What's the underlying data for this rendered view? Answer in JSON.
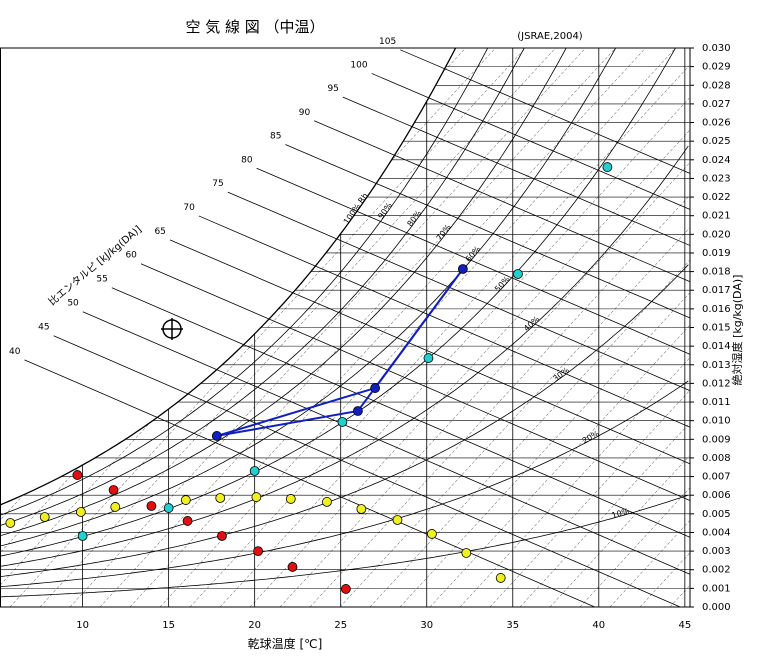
{
  "chart_data": {
    "type": "scatter",
    "title": "空 気 線 図 （中温）",
    "subtitle": "(JSRAE,2004)",
    "x_label": "乾球温度 [℃]",
    "y_label": "絶対湿度 [kg/kg(DA)]",
    "enthalpy_label": "比エンタルピ [kJ/kg(DA)]",
    "yaxis_position": "right",
    "xlim": [
      5.2,
      45.3
    ],
    "xticks": [
      10,
      15,
      20,
      25,
      30,
      35,
      40,
      45
    ],
    "ylim": [
      0,
      0.03
    ],
    "yticks": [
      {
        "value": 0,
        "label": "0.000"
      },
      {
        "value": 0.001,
        "label": "0.001"
      },
      {
        "value": 0.002,
        "label": "0.002"
      },
      {
        "value": 0.003,
        "label": "0.003"
      },
      {
        "value": 0.004,
        "label": "0.004"
      },
      {
        "value": 0.005,
        "label": "0.005"
      },
      {
        "value": 0.006,
        "label": "0.006"
      },
      {
        "value": 0.007,
        "label": "0.007"
      },
      {
        "value": 0.008,
        "label": "0.008"
      },
      {
        "value": 0.009,
        "label": "0.009"
      },
      {
        "value": 0.01,
        "label": "0.010"
      },
      {
        "value": 0.011,
        "label": "0.011"
      },
      {
        "value": 0.012,
        "label": "0.012"
      },
      {
        "value": 0.013,
        "label": "0.013"
      },
      {
        "value": 0.014,
        "label": "0.014"
      },
      {
        "value": 0.015,
        "label": "0.015"
      },
      {
        "value": 0.016,
        "label": "0.016"
      },
      {
        "value": 0.017,
        "label": "0.017"
      },
      {
        "value": 0.018,
        "label": "0.018"
      },
      {
        "value": 0.019,
        "label": "0.019"
      },
      {
        "value": 0.02,
        "label": "0.020"
      },
      {
        "value": 0.021,
        "label": "0.021"
      },
      {
        "value": 0.022,
        "label": "0.022"
      },
      {
        "value": 0.023,
        "label": "0.023"
      },
      {
        "value": 0.024,
        "label": "0.024"
      },
      {
        "value": 0.025,
        "label": "0.025"
      },
      {
        "value": 0.026,
        "label": "0.026"
      },
      {
        "value": 0.027,
        "label": "0.027"
      },
      {
        "value": 0.028,
        "label": "0.028"
      },
      {
        "value": 0.029,
        "label": "0.029"
      },
      {
        "value": 0.03,
        "label": "0.030"
      }
    ],
    "enthalpy_ticks": [
      40,
      45,
      50,
      55,
      60,
      65,
      70,
      75,
      80,
      85,
      90,
      95,
      100,
      105
    ],
    "rh_ticks": [
      {
        "value": 100,
        "label": "100% Rh"
      },
      {
        "value": 90,
        "label": "90%"
      },
      {
        "value": 80,
        "label": "80%"
      },
      {
        "value": 70,
        "label": "70%"
      },
      {
        "value": 60,
        "label": "60%"
      },
      {
        "value": 50,
        "label": "50%"
      },
      {
        "value": 40,
        "label": "40%"
      },
      {
        "value": 30,
        "label": "30%"
      },
      {
        "value": 20,
        "label": "20%"
      },
      {
        "value": 10,
        "label": "10%"
      }
    ],
    "series": [
      {
        "color": "#1020c0",
        "line": true,
        "x": [
          17.8,
          27.0,
          32.1,
          26.0,
          17.8
        ],
        "values": [
          0.00918,
          0.01175,
          0.01814,
          0.01052,
          0.00918
        ]
      },
      {
        "color": "#e01010",
        "x": [
          9.7,
          11.8,
          14.0,
          16.1,
          18.1,
          20.2,
          22.2,
          25.3
        ],
        "values": [
          0.00708,
          0.00628,
          0.00542,
          0.00462,
          0.00381,
          0.003,
          0.00215,
          0.00097
        ]
      },
      {
        "color": "#f0f020",
        "x": [
          5.8,
          7.8,
          9.9,
          11.9,
          16.0,
          18.0,
          20.1,
          22.1,
          24.2,
          26.2,
          28.3,
          30.3,
          32.3,
          34.3
        ],
        "values": [
          0.00451,
          0.00483,
          0.0051,
          0.00537,
          0.00574,
          0.00585,
          0.0059,
          0.0058,
          0.00564,
          0.00526,
          0.00467,
          0.00392,
          0.0029,
          0.00156
        ]
      },
      {
        "color": "#20d0d0",
        "x": [
          10.0,
          15.0,
          20.0,
          25.1,
          30.1,
          35.3,
          40.5
        ],
        "values": [
          0.00381,
          0.00531,
          0.0073,
          0.00993,
          0.01336,
          0.01787,
          0.02361
        ]
      }
    ]
  }
}
